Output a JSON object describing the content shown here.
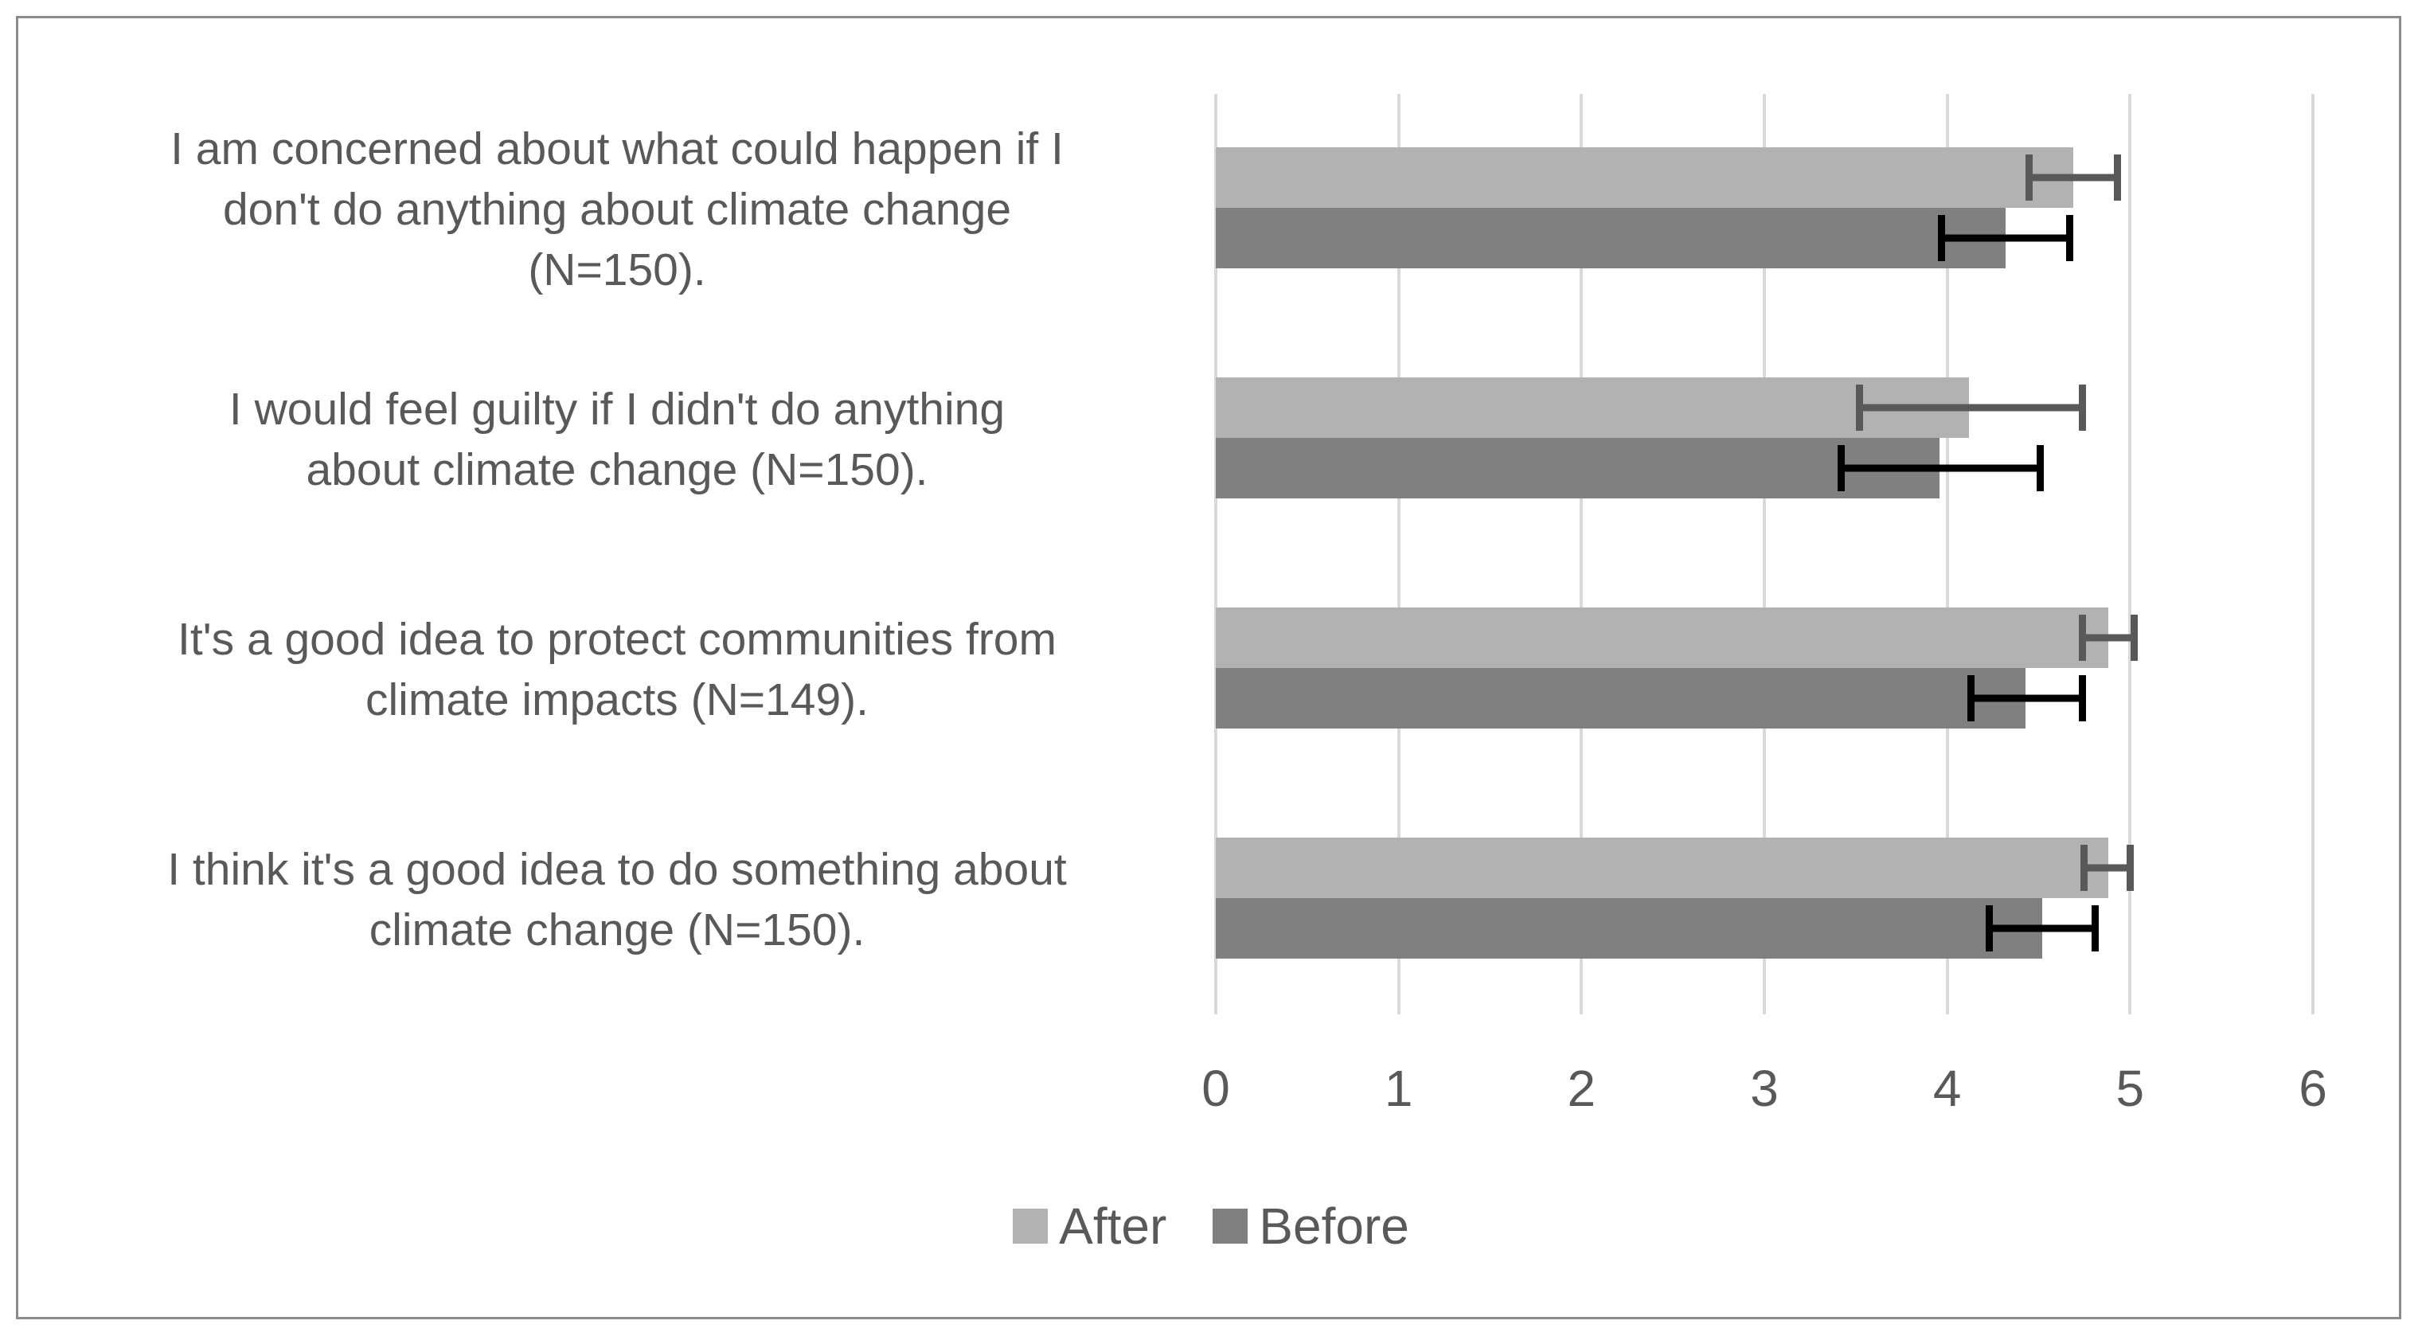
{
  "chart_data": {
    "type": "bar",
    "orientation": "horizontal",
    "title": "",
    "xlabel": "",
    "ylabel": "",
    "xlim": [
      0,
      6
    ],
    "x_ticks": [
      "0",
      "1",
      "2",
      "3",
      "4",
      "5",
      "6"
    ],
    "grid": "vertical-major",
    "legend_position": "bottom",
    "categories": [
      "I am concerned about what could happen if I\ndon't do anything about climate change\n(N=150).",
      "I would feel guilty if I didn't do anything\nabout climate change (N=150).",
      "It's a good idea to protect communities from\nclimate impacts (N=149).",
      "I think it's a good idea to do something about\nclimate change (N=150)."
    ],
    "series": [
      {
        "name": "After",
        "color": "#b2b2b2",
        "error_bar_color": "#595959",
        "values": [
          4.69,
          4.12,
          4.88,
          4.88
        ],
        "error_low": [
          4.43,
          3.5,
          4.72,
          4.73
        ],
        "error_high": [
          4.95,
          4.76,
          5.04,
          5.02
        ]
      },
      {
        "name": "Before",
        "color": "#808080",
        "error_bar_color": "#000000",
        "values": [
          4.32,
          3.96,
          4.43,
          4.52
        ],
        "error_low": [
          3.95,
          3.4,
          4.11,
          4.21
        ],
        "error_high": [
          4.69,
          4.53,
          4.76,
          4.83
        ]
      }
    ]
  },
  "colors": {
    "bar_after": "#b2b2b2",
    "bar_before": "#808080",
    "error_after": "#595959",
    "error_before": "#000000",
    "gridline": "#d9d9d9",
    "frame_border": "#8c8c8c",
    "text": "#595959",
    "background": "#ffffff"
  }
}
